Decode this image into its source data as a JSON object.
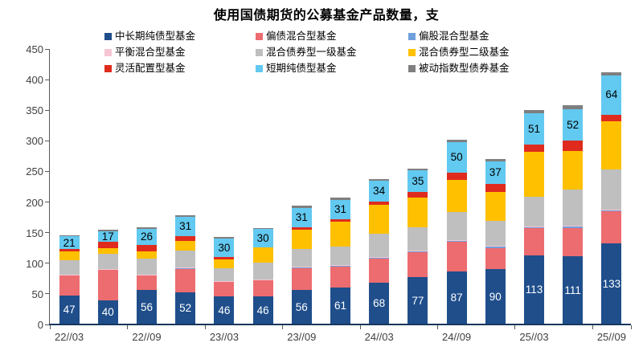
{
  "title": "使用国债期货的公募基金产品数量，支",
  "chart_data": {
    "type": "bar",
    "stacked": true,
    "title": "使用国债期货的公募基金产品数量，支",
    "unit": "支",
    "grid": false,
    "legend_position": "top",
    "ylim": [
      0,
      450
    ],
    "y_ticks": [
      0,
      50,
      100,
      150,
      200,
      250,
      300,
      350,
      400,
      450
    ],
    "bar_count": 15,
    "x_tick_labels": [
      "22//03",
      "22//09",
      "23//03",
      "23//09",
      "24//03",
      "24//09",
      "25//03",
      "25//09"
    ],
    "bars_per_x_label": 2,
    "series": [
      {
        "name": "中长期纯债型基金",
        "color": "#1F4E8B",
        "values": [
          47,
          40,
          56,
          52,
          46,
          46,
          56,
          61,
          68,
          77,
          87,
          90,
          113,
          111,
          133
        ],
        "value_labels_shown": true,
        "label_color": "#FFFFFF"
      },
      {
        "name": "偏债混合型基金",
        "color": "#EC6C70",
        "values": [
          34,
          50,
          25,
          39,
          24,
          26,
          36,
          33,
          40,
          42,
          49,
          35,
          44,
          47,
          52
        ],
        "value_labels_shown": false
      },
      {
        "name": "偏股混合型基金",
        "color": "#6FA0DC",
        "values": [
          0,
          0,
          0,
          1,
          0,
          0,
          1,
          2,
          1,
          1,
          1,
          2,
          2,
          2,
          2
        ],
        "value_labels_shown": false
      },
      {
        "name": "平衡混合型基金",
        "color": "#F7C6D4",
        "values": [
          1,
          1,
          1,
          1,
          1,
          1,
          1,
          1,
          1,
          1,
          1,
          1,
          1,
          1,
          1
        ],
        "value_labels_shown": false
      },
      {
        "name": "混合债券型一级基金",
        "color": "#BFBFBF",
        "values": [
          23,
          24,
          25,
          28,
          21,
          28,
          29,
          30,
          38,
          38,
          46,
          41,
          49,
          59,
          65
        ],
        "value_labels_shown": false
      },
      {
        "name": "混合债券型二级基金",
        "color": "#FFC000",
        "values": [
          14,
          10,
          12,
          15,
          14,
          25,
          32,
          41,
          48,
          49,
          52,
          47,
          73,
          64,
          79
        ],
        "value_labels_shown": false
      },
      {
        "name": "灵活配置型基金",
        "color": "#DF2B1E",
        "values": [
          4,
          10,
          11,
          9,
          4,
          0,
          4,
          4,
          5,
          9,
          12,
          14,
          12,
          16,
          11
        ],
        "value_labels_shown": false
      },
      {
        "name": "短期纯债型基金",
        "color": "#62C9F0",
        "values": [
          21,
          17,
          26,
          31,
          30,
          30,
          31,
          31,
          34,
          35,
          50,
          37,
          51,
          52,
          64
        ],
        "value_labels_shown": true,
        "label_color": "#000000"
      },
      {
        "name": "被动指数型债券基金",
        "color": "#7F7F7F",
        "values": [
          2,
          3,
          3,
          3,
          3,
          2,
          4,
          4,
          3,
          3,
          4,
          3,
          5,
          6,
          5
        ],
        "value_labels_shown": false
      }
    ]
  }
}
